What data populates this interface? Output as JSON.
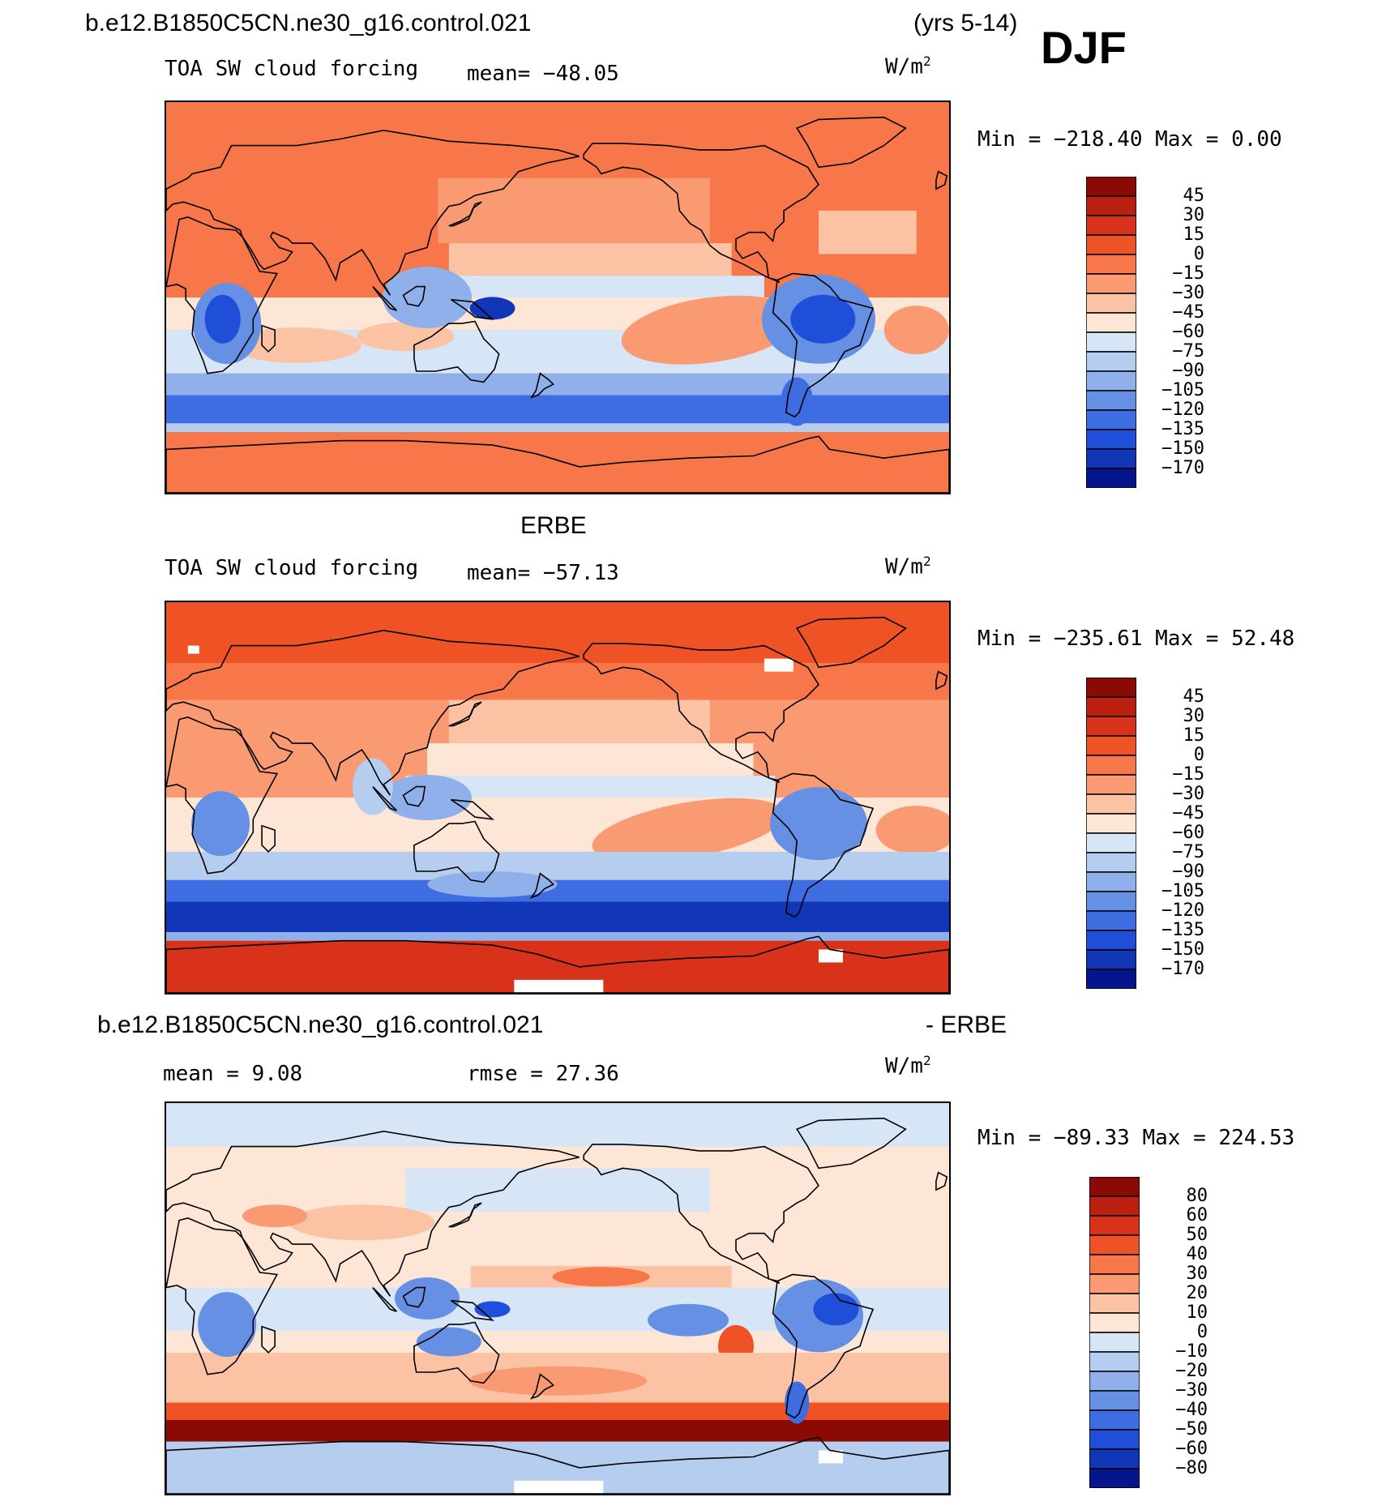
{
  "header": {
    "case_name": "b.e12.B1850C5CN.ne30_g16.control.021",
    "years": "(yrs 5-14)",
    "season": "DJF"
  },
  "middle_title": "ERBE",
  "diff_header": {
    "case_name": "b.e12.B1850C5CN.ne30_g16.control.021",
    "suffix": "- ERBE"
  },
  "colors": {
    "warm": [
      "#fde6d6",
      "#fbc3a4",
      "#f99a73",
      "#f7764a",
      "#ee5225",
      "#d8321a",
      "#ba1f10",
      "#8c0a06"
    ],
    "cold": [
      "#d6e6f7",
      "#b5cdef",
      "#8fb0ea",
      "#6590e3",
      "#3d6de0",
      "#1f4fd8",
      "#1136b8",
      "#05158c"
    ]
  },
  "chart_data": [
    {
      "type": "heatmap",
      "panel": "model",
      "title": "TOA SW cloud forcing",
      "mean_label": "mean= −48.05",
      "units": "W/m",
      "units_sup": "2",
      "minmax_label": "Min = −218.40 Max =   0.00",
      "mean": -48.05,
      "min": -218.4,
      "max": 0.0,
      "levels": [
        "45",
        "30",
        "15",
        "0",
        "−15",
        "−30",
        "−45",
        "−60",
        "−75",
        "−90",
        "−105",
        "−120",
        "−135",
        "−150",
        "−170"
      ]
    },
    {
      "type": "heatmap",
      "panel": "obs",
      "title": "TOA SW cloud forcing",
      "mean_label": "mean= −57.13",
      "units": "W/m",
      "units_sup": "2",
      "minmax_label": "Min = −235.61 Max =  52.48",
      "mean": -57.13,
      "min": -235.61,
      "max": 52.48,
      "levels": [
        "45",
        "30",
        "15",
        "0",
        "−15",
        "−30",
        "−45",
        "−60",
        "−75",
        "−90",
        "−105",
        "−120",
        "−135",
        "−150",
        "−170"
      ]
    },
    {
      "type": "heatmap",
      "panel": "difference",
      "mean_label": "mean =   9.08",
      "rmse_label": "rmse =  27.36",
      "units": "W/m",
      "units_sup": "2",
      "minmax_label": "Min = −89.33 Max = 224.53",
      "mean": 9.08,
      "rmse": 27.36,
      "min": -89.33,
      "max": 224.53,
      "levels": [
        "80",
        "60",
        "50",
        "40",
        "30",
        "20",
        "10",
        "0",
        "−10",
        "−20",
        "−30",
        "−40",
        "−50",
        "−60",
        "−80"
      ]
    }
  ]
}
